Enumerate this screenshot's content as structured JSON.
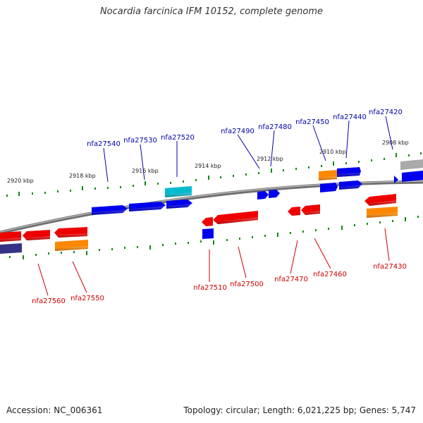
{
  "title": "Nocardia farcinica IFM 10152, complete genome",
  "accession": "Accession: NC_006361",
  "summary": "Topology: circular; Length: 6,021,225 bp; Genes: 5,747",
  "colors": {
    "backbone": "#8a8a8a",
    "tick": "#118811",
    "forward_label": "#0000aa",
    "reverse_label": "#cc0000",
    "blue": "#0000ee",
    "red": "#ee0000",
    "orange": "#ff8800",
    "cyan": "#00bbcc",
    "navy": "#333388",
    "gray": "#aaaaaa"
  },
  "scale_labels": [
    "2920 kbp",
    "2918 kbp",
    "2916 kbp",
    "2914 kbp",
    "2912 kbp",
    "2910 kbp",
    "2908 kbp"
  ],
  "forward_genes": [
    "nfa27540",
    "nfa27530",
    "nfa27520",
    "nfa27490",
    "nfa27480",
    "nfa27450",
    "nfa27440",
    "nfa27420"
  ],
  "reverse_genes": [
    "nfa27560",
    "nfa27550",
    "nfa27510",
    "nfa27500",
    "nfa27470",
    "nfa27460",
    "nfa27430"
  ]
}
